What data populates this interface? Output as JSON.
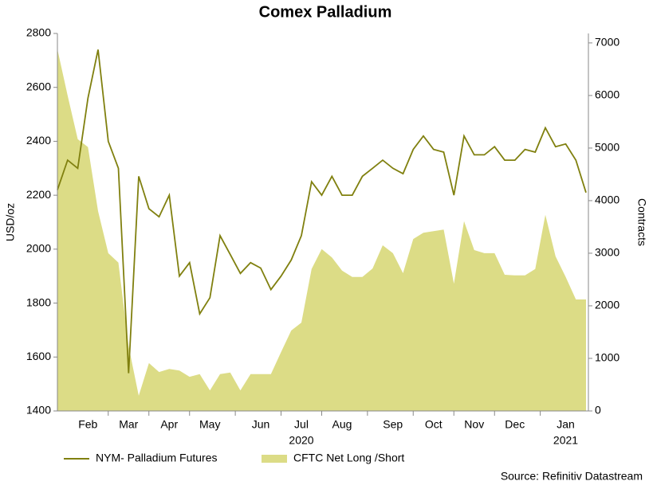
{
  "chart_data": {
    "type": "line_area_dual",
    "title": "Comex Palladium",
    "y_label": "USD/oz",
    "y2_label": "Contracts",
    "source": "Source: Refinitiv Datastream",
    "categories": [
      null,
      null,
      null,
      "Feb",
      null,
      null,
      null,
      "Mar",
      null,
      null,
      null,
      "Apr",
      null,
      null,
      null,
      "May",
      null,
      null,
      null,
      null,
      "Jun",
      null,
      null,
      null,
      "Jul",
      null,
      null,
      null,
      "Aug",
      null,
      null,
      null,
      null,
      "Sep",
      null,
      null,
      null,
      "Oct",
      null,
      null,
      null,
      "Nov",
      null,
      null,
      null,
      "Dec",
      null,
      null,
      null,
      null,
      "Jan",
      null,
      null
    ],
    "category_years": [
      null,
      null,
      null,
      null,
      null,
      null,
      null,
      null,
      null,
      null,
      null,
      null,
      null,
      null,
      null,
      null,
      null,
      null,
      null,
      null,
      null,
      null,
      null,
      null,
      "2020",
      null,
      null,
      null,
      null,
      null,
      null,
      null,
      null,
      null,
      null,
      null,
      null,
      null,
      null,
      null,
      null,
      null,
      null,
      null,
      null,
      null,
      null,
      null,
      null,
      null,
      "2021",
      null,
      null
    ],
    "series": [
      {
        "name": "NYM- Palladium Futures",
        "color": "#80800f",
        "axis": "y",
        "values": [
          2220,
          2330,
          2300,
          2560,
          2740,
          2400,
          2300,
          1540,
          2270,
          2150,
          2120,
          2200,
          1900,
          1950,
          1760,
          1820,
          2050,
          1980,
          1910,
          1950,
          1930,
          1850,
          1900,
          1960,
          2050,
          2250,
          2200,
          2270,
          2200,
          2200,
          2270,
          2300,
          2330,
          2300,
          2280,
          2370,
          2420,
          2370,
          2360,
          2200,
          2420,
          2350,
          2350,
          2380,
          2330,
          2330,
          2370,
          2360,
          2450,
          2380,
          2390,
          2330,
          2210
        ]
      },
      {
        "name": "CFTC Net Long /Short",
        "color": "#dcdc86",
        "axis": "y2",
        "values": [
          6880,
          6000,
          5170,
          5020,
          3800,
          3000,
          2820,
          1230,
          290,
          910,
          740,
          800,
          770,
          650,
          700,
          390,
          700,
          730,
          390,
          700,
          700,
          700,
          1120,
          1530,
          1680,
          2700,
          3080,
          2920,
          2670,
          2550,
          2550,
          2710,
          3150,
          3000,
          2620,
          3270,
          3390,
          3420,
          3450,
          2420,
          3610,
          3060,
          3000,
          3000,
          2590,
          2580,
          2580,
          2700,
          3730,
          2940,
          2550,
          2120,
          2120
        ]
      }
    ],
    "ylim": [
      1400,
      2800
    ],
    "yticks": [
      1400,
      1600,
      1800,
      2000,
      2200,
      2400,
      2600,
      2800
    ],
    "y2lim": [
      0,
      7180
    ],
    "y2ticks": [
      0,
      1000,
      2000,
      3000,
      4000,
      5000,
      6000,
      7000
    ],
    "legend": "bottom"
  }
}
